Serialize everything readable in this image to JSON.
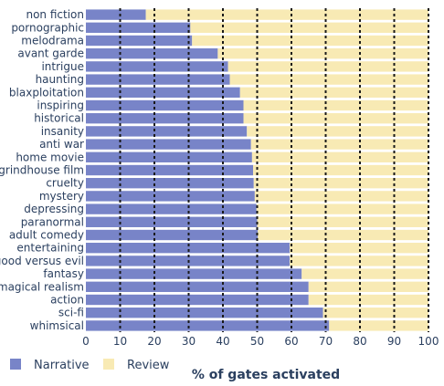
{
  "chart_data": {
    "type": "bar",
    "orientation": "horizontal",
    "stacked": true,
    "categories": [
      "non fiction",
      "pornographic",
      "melodrama",
      "avant garde",
      "intrigue",
      "haunting",
      "blaxploitation",
      "inspiring",
      "historical",
      "insanity",
      "anti war",
      "home movie",
      "grindhouse film",
      "cruelty",
      "mystery",
      "depressing",
      "paranormal",
      "adult comedy",
      "entertaining",
      "good versus evil",
      "fantasy",
      "magical realism",
      "action",
      "sci-fi",
      "whimsical"
    ],
    "series": [
      {
        "name": "Narrative",
        "color": "#7884c8",
        "values": [
          17.5,
          30.5,
          31,
          38.5,
          41.5,
          42,
          45,
          46,
          46,
          47,
          48.2,
          48.5,
          48.8,
          49,
          49.3,
          49.8,
          50,
          50.2,
          59.5,
          59.5,
          63,
          65,
          65,
          69.2,
          71
        ]
      },
      {
        "name": "Review",
        "color": "#f8eab4",
        "values": [
          82.5,
          69.5,
          69,
          61.5,
          58.5,
          58,
          55,
          54,
          54,
          53,
          51.8,
          51.5,
          51.2,
          51,
          50.7,
          50.2,
          50,
          49.8,
          40.5,
          40.5,
          37,
          35,
          35,
          30.8,
          29
        ]
      }
    ],
    "x_ticks": [
      0,
      10,
      20,
      30,
      40,
      50,
      60,
      70,
      80,
      90,
      100
    ],
    "xlim": [
      0,
      100
    ],
    "xlabel": "% of gates activated",
    "grid": "vertical dashed",
    "legend_position": "bottom-left"
  }
}
